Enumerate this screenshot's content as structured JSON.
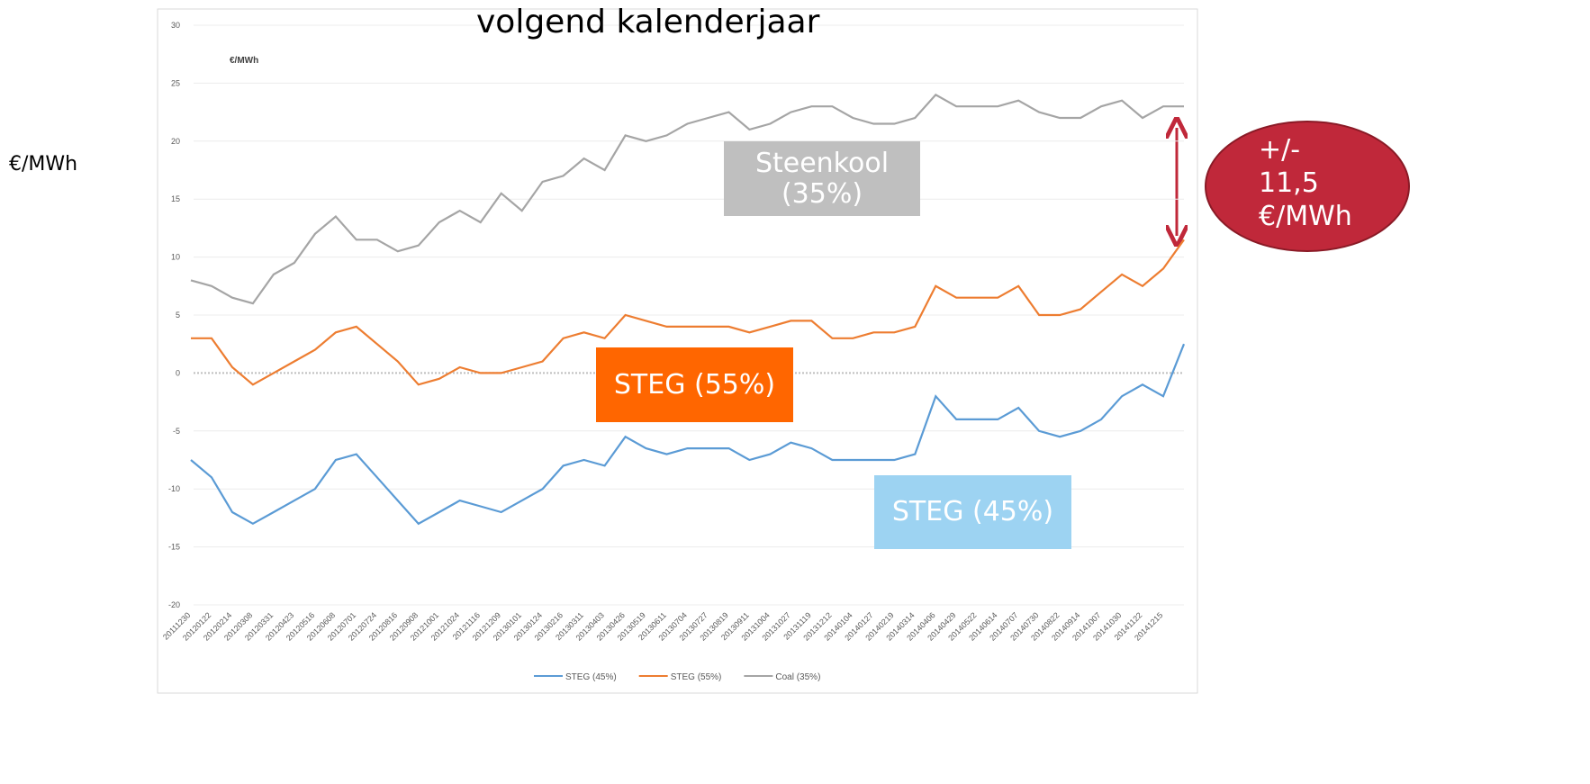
{
  "chart_data": {
    "type": "line",
    "title": "volgend kalenderjaar",
    "ylabel": "€/MWh",
    "inner_ylabel": "€/MWh",
    "categories": [
      "20111230",
      "20120122",
      "20120214",
      "20120308",
      "20120331",
      "20120423",
      "20120516",
      "20120608",
      "20120701",
      "20120724",
      "20120816",
      "20120908",
      "20121001",
      "20121024",
      "20121116",
      "20121209",
      "20130101",
      "20130124",
      "20130216",
      "20130311",
      "20130403",
      "20130426",
      "20130519",
      "20130611",
      "20130704",
      "20130727",
      "20130819",
      "20130911",
      "20131004",
      "20131027",
      "20131119",
      "20131212",
      "20140104",
      "20140127",
      "20140219",
      "20140314",
      "20140406",
      "20140429",
      "20140522",
      "20140614",
      "20140707",
      "20140730",
      "20140822",
      "20140914",
      "20141007",
      "20141030",
      "20141122",
      "20141215",
      null
    ],
    "series": [
      {
        "name": "STEG (45%)",
        "color": "#5b9bd5",
        "values": [
          -7.5,
          -9,
          -12,
          -13,
          -12,
          -11,
          -10,
          -7.5,
          -7,
          -9,
          -11,
          -13,
          -12,
          -11,
          -11.5,
          -12,
          -11,
          -10,
          -8,
          -7.5,
          -8,
          -5.5,
          -6.5,
          -7,
          -6.5,
          -6.5,
          -6.5,
          -7.5,
          -7,
          -6,
          -6.5,
          -7.5,
          -7.5,
          -7.5,
          -7.5,
          -7,
          -2,
          -4,
          -4,
          -4,
          -3,
          -5,
          -5.5,
          -5,
          -4,
          -2,
          -1,
          -2,
          2.5
        ]
      },
      {
        "name": "STEG (55%)",
        "color": "#ed7d31",
        "values": [
          3,
          3,
          0.5,
          -1,
          0,
          1,
          2,
          3.5,
          4,
          2.5,
          1,
          -1,
          -0.5,
          0.5,
          0,
          0,
          0.5,
          1,
          3,
          3.5,
          3,
          5,
          4.5,
          4,
          4,
          4,
          4,
          3.5,
          4,
          4.5,
          4.5,
          3,
          3,
          3.5,
          3.5,
          4,
          7.5,
          6.5,
          6.5,
          6.5,
          7.5,
          5,
          5,
          5.5,
          7,
          8.5,
          7.5,
          9,
          11.5
        ]
      },
      {
        "name": "Coal (35%)",
        "color": "#a5a5a5",
        "values": [
          8,
          7.5,
          6.5,
          6,
          8.5,
          9.5,
          12,
          13.5,
          11.5,
          11.5,
          10.5,
          11,
          13,
          14,
          13,
          15.5,
          14,
          16.5,
          17,
          18.5,
          17.5,
          20.5,
          20,
          20.5,
          21.5,
          22,
          22.5,
          21,
          21.5,
          22.5,
          23,
          23,
          22,
          21.5,
          21.5,
          22,
          24,
          23,
          23,
          23,
          23.5,
          22.5,
          22,
          22,
          23,
          23.5,
          22,
          23,
          23
        ]
      }
    ],
    "ylim": [
      -20,
      30
    ],
    "yticks": [
      -20,
      -15,
      -10,
      -5,
      0,
      5,
      10,
      15,
      20,
      25,
      30
    ],
    "grid": true,
    "legend": "bottom",
    "annotations": [
      {
        "text": "Steenkool (35%)",
        "color": "#bfbfbf"
      },
      {
        "text": "STEG (55%)",
        "color": "#ff6600"
      },
      {
        "text": "STEG (45%)",
        "color": "#9dd3f2"
      },
      {
        "text": "+/- 11,5 €/MWh",
        "color": "#c0283a"
      }
    ]
  }
}
